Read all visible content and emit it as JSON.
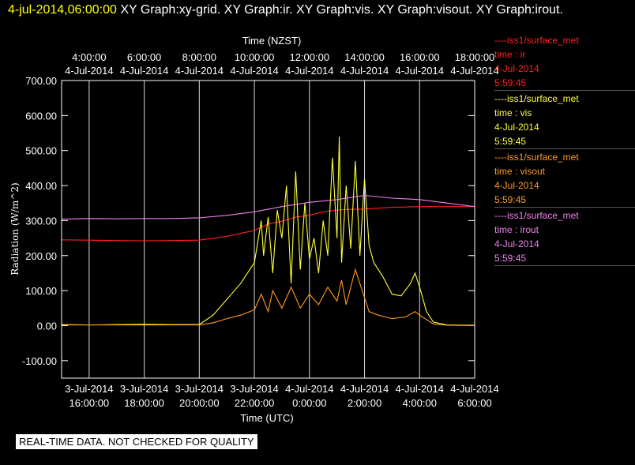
{
  "header": {
    "timestamp": "4-jul-2014,06:00:00",
    "graphs": "XY Graph:xy-grid.  XY Graph:ir.  XY Graph:vis.  XY Graph:visout.  XY Graph:irout."
  },
  "footer": {
    "text": "REAL-TIME DATA. NOT CHECKED FOR QUALITY"
  },
  "legend": [
    {
      "dash": "----",
      "source": "iss1/surface_met",
      "time": "time : ir",
      "date": "4-Jul-2014",
      "clock": "5:59:45",
      "color": "#ff2020"
    },
    {
      "dash": "----",
      "source": "iss1/surface_met",
      "time": "time : vis",
      "date": "4-Jul-2014",
      "clock": "5:59:45",
      "color": "#ffff33"
    },
    {
      "dash": "----",
      "source": "iss1/surface_met",
      "time": "time : visout",
      "date": "4-Jul-2014",
      "clock": "5:59:45",
      "color": "#ff9922"
    },
    {
      "dash": "----",
      "source": "iss1/surface_met",
      "time": "time : irout",
      "date": "4-Jul-2014",
      "clock": "5:59:45",
      "color": "#ee82ee"
    }
  ],
  "chart_data": {
    "type": "line",
    "xlabel": "Time (UTC)",
    "x2label": "Time (NZST)",
    "ylabel": "Radiation  (W/m^2)",
    "xlim": [
      "2014-07-03T15:00",
      "2014-07-04T06:00"
    ],
    "ylim": [
      -150,
      700
    ],
    "grid": true,
    "x_ticks_bottom": [
      {
        "d": "3-Jul-2014",
        "t": "16:00:00"
      },
      {
        "d": "3-Jul-2014",
        "t": "18:00:00"
      },
      {
        "d": "3-Jul-2014",
        "t": "20:00:00"
      },
      {
        "d": "3-Jul-2014",
        "t": "22:00:00"
      },
      {
        "d": "4-Jul-2014",
        "t": "0:00:00"
      },
      {
        "d": "4-Jul-2014",
        "t": "2:00:00"
      },
      {
        "d": "4-Jul-2014",
        "t": "4:00:00"
      },
      {
        "d": "4-Jul-2014",
        "t": "6:00:00"
      }
    ],
    "x_ticks_top": [
      {
        "t": "4:00:00",
        "d": "4-Jul-2014"
      },
      {
        "t": "6:00:00",
        "d": "4-Jul-2014"
      },
      {
        "t": "8:00:00",
        "d": "4-Jul-2014"
      },
      {
        "t": "10:00:00",
        "d": "4-Jul-2014"
      },
      {
        "t": "12:00:00",
        "d": "4-Jul-2014"
      },
      {
        "t": "14:00:00",
        "d": "4-Jul-2014"
      },
      {
        "t": "16:00:00",
        "d": "4-Jul-2014"
      },
      {
        "t": "18:00:00",
        "d": "4-Jul-2014"
      }
    ],
    "y_ticks": [
      {
        "v": -100,
        "label": "-100.00"
      },
      {
        "v": 0,
        "label": "0.00"
      },
      {
        "v": 100,
        "label": "100.00"
      },
      {
        "v": 200,
        "label": "200.00"
      },
      {
        "v": 300,
        "label": "300.00"
      },
      {
        "v": 400,
        "label": "400.00"
      },
      {
        "v": 500,
        "label": "500.00"
      },
      {
        "v": 600,
        "label": "600.00"
      },
      {
        "v": 700,
        "label": "700.00"
      }
    ],
    "series": [
      {
        "name": "ir",
        "color": "#ff2020",
        "points": [
          [
            "2014-07-03T15:00",
            245
          ],
          [
            "2014-07-03T16:00",
            244
          ],
          [
            "2014-07-03T17:00",
            243
          ],
          [
            "2014-07-03T18:00",
            242
          ],
          [
            "2014-07-03T19:00",
            243
          ],
          [
            "2014-07-03T20:00",
            244
          ],
          [
            "2014-07-03T21:00",
            255
          ],
          [
            "2014-07-03T22:00",
            272
          ],
          [
            "2014-07-03T22:30",
            290
          ],
          [
            "2014-07-03T23:00",
            298
          ],
          [
            "2014-07-03T23:30",
            310
          ],
          [
            "2014-07-04T00:00",
            315
          ],
          [
            "2014-07-04T00:30",
            325
          ],
          [
            "2014-07-04T01:00",
            330
          ],
          [
            "2014-07-04T01:30",
            332
          ],
          [
            "2014-07-04T02:00",
            333
          ],
          [
            "2014-07-04T03:00",
            338
          ],
          [
            "2014-07-04T04:00",
            340
          ],
          [
            "2014-07-04T05:00",
            340
          ],
          [
            "2014-07-04T06:00",
            340
          ]
        ]
      },
      {
        "name": "vis",
        "color": "#ffff33",
        "points": [
          [
            "2014-07-03T15:00",
            3
          ],
          [
            "2014-07-03T16:00",
            2
          ],
          [
            "2014-07-03T17:00",
            3
          ],
          [
            "2014-07-03T18:00",
            4
          ],
          [
            "2014-07-03T19:00",
            3
          ],
          [
            "2014-07-03T20:00",
            3
          ],
          [
            "2014-07-03T20:30",
            30
          ],
          [
            "2014-07-03T21:00",
            75
          ],
          [
            "2014-07-03T21:30",
            120
          ],
          [
            "2014-07-03T22:00",
            180
          ],
          [
            "2014-07-03T22:15",
            300
          ],
          [
            "2014-07-03T22:20",
            200
          ],
          [
            "2014-07-03T22:30",
            310
          ],
          [
            "2014-07-03T22:40",
            150
          ],
          [
            "2014-07-03T22:50",
            330
          ],
          [
            "2014-07-03T23:00",
            250
          ],
          [
            "2014-07-03T23:10",
            400
          ],
          [
            "2014-07-03T23:20",
            120
          ],
          [
            "2014-07-03T23:30",
            440
          ],
          [
            "2014-07-03T23:40",
            160
          ],
          [
            "2014-07-03T23:50",
            350
          ],
          [
            "2014-07-04T00:00",
            190
          ],
          [
            "2014-07-04T00:10",
            250
          ],
          [
            "2014-07-04T00:20",
            150
          ],
          [
            "2014-07-04T00:30",
            300
          ],
          [
            "2014-07-04T00:40",
            200
          ],
          [
            "2014-07-04T00:50",
            480
          ],
          [
            "2014-07-04T01:00",
            250
          ],
          [
            "2014-07-04T01:05",
            540
          ],
          [
            "2014-07-04T01:10",
            180
          ],
          [
            "2014-07-04T01:20",
            400
          ],
          [
            "2014-07-04T01:30",
            220
          ],
          [
            "2014-07-04T01:40",
            470
          ],
          [
            "2014-07-04T01:50",
            200
          ],
          [
            "2014-07-04T02:00",
            420
          ],
          [
            "2014-07-04T02:10",
            230
          ],
          [
            "2014-07-04T02:20",
            180
          ],
          [
            "2014-07-04T02:40",
            140
          ],
          [
            "2014-07-04T03:00",
            90
          ],
          [
            "2014-07-04T03:20",
            85
          ],
          [
            "2014-07-04T03:40",
            120
          ],
          [
            "2014-07-04T03:50",
            150
          ],
          [
            "2014-07-04T04:00",
            110
          ],
          [
            "2014-07-04T04:15",
            40
          ],
          [
            "2014-07-04T04:30",
            10
          ],
          [
            "2014-07-04T05:00",
            2
          ],
          [
            "2014-07-04T06:00",
            1
          ]
        ]
      },
      {
        "name": "visout",
        "color": "#ff9922",
        "points": [
          [
            "2014-07-03T15:00",
            2
          ],
          [
            "2014-07-03T18:00",
            2
          ],
          [
            "2014-07-03T20:00",
            2
          ],
          [
            "2014-07-03T20:30",
            8
          ],
          [
            "2014-07-03T21:00",
            20
          ],
          [
            "2014-07-03T21:30",
            30
          ],
          [
            "2014-07-03T22:00",
            45
          ],
          [
            "2014-07-03T22:15",
            90
          ],
          [
            "2014-07-03T22:30",
            40
          ],
          [
            "2014-07-03T22:40",
            100
          ],
          [
            "2014-07-03T23:00",
            50
          ],
          [
            "2014-07-03T23:20",
            110
          ],
          [
            "2014-07-03T23:40",
            50
          ],
          [
            "2014-07-04T00:00",
            90
          ],
          [
            "2014-07-04T00:20",
            60
          ],
          [
            "2014-07-04T00:40",
            110
          ],
          [
            "2014-07-04T01:00",
            70
          ],
          [
            "2014-07-04T01:10",
            130
          ],
          [
            "2014-07-04T01:20",
            60
          ],
          [
            "2014-07-04T01:40",
            160
          ],
          [
            "2014-07-04T02:00",
            80
          ],
          [
            "2014-07-04T02:10",
            40
          ],
          [
            "2014-07-04T02:30",
            30
          ],
          [
            "2014-07-04T03:00",
            20
          ],
          [
            "2014-07-04T03:30",
            25
          ],
          [
            "2014-07-04T03:50",
            40
          ],
          [
            "2014-07-04T04:00",
            30
          ],
          [
            "2014-07-04T04:30",
            5
          ],
          [
            "2014-07-04T05:00",
            1
          ],
          [
            "2014-07-04T06:00",
            0
          ]
        ]
      },
      {
        "name": "irout",
        "color": "#ee82ee",
        "points": [
          [
            "2014-07-03T15:00",
            304
          ],
          [
            "2014-07-03T16:00",
            306
          ],
          [
            "2014-07-03T17:00",
            305
          ],
          [
            "2014-07-03T18:00",
            306
          ],
          [
            "2014-07-03T19:00",
            306
          ],
          [
            "2014-07-03T20:00",
            308
          ],
          [
            "2014-07-03T21:00",
            315
          ],
          [
            "2014-07-03T22:00",
            325
          ],
          [
            "2014-07-03T23:00",
            340
          ],
          [
            "2014-07-04T00:00",
            352
          ],
          [
            "2014-07-04T01:00",
            360
          ],
          [
            "2014-07-04T02:00",
            372
          ],
          [
            "2014-07-04T03:00",
            364
          ],
          [
            "2014-07-04T04:00",
            360
          ],
          [
            "2014-07-04T05:00",
            350
          ],
          [
            "2014-07-04T06:00",
            340
          ]
        ]
      }
    ]
  }
}
